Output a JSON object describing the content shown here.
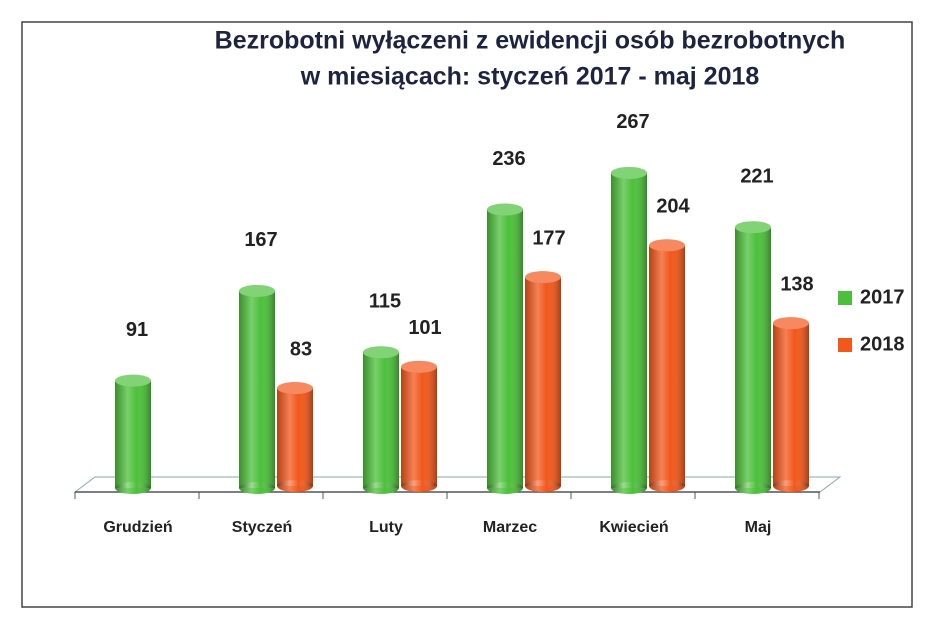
{
  "chart_data": {
    "type": "bar",
    "title": [
      "Bezrobotni wyłączeni z ewidencji osób bezrobotnych",
      "w miesiącach: styczeń 2017 - maj 2018"
    ],
    "categories": [
      "Grudzień",
      "Styczeń",
      "Luty",
      "Marzec",
      "Kwiecień",
      "Maj"
    ],
    "series": [
      {
        "name": "2017",
        "color": "#4cc03a",
        "values": [
          91,
          167,
          115,
          236,
          267,
          221
        ]
      },
      {
        "name": "2018",
        "color": "#f2571b",
        "values": [
          null,
          83,
          101,
          177,
          204,
          138
        ]
      }
    ],
    "legend": "right"
  }
}
